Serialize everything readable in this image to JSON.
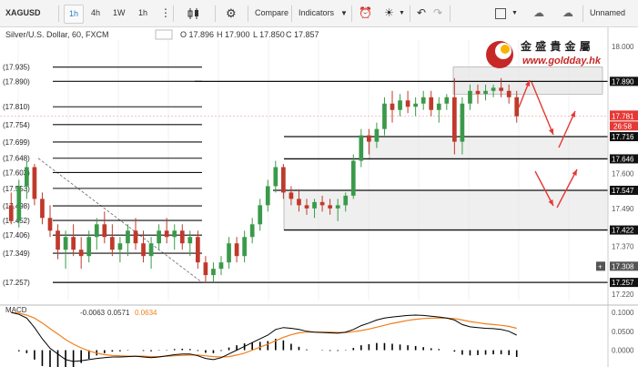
{
  "toolbar": {
    "symbol": "XAGUSD",
    "intervals": [
      "1h",
      "4h",
      "1W",
      "1h"
    ],
    "active_interval": "1h",
    "compare_label": "Compare",
    "indicators_label": "Indicators",
    "layout_name": "Unnamed",
    "icons": [
      "more-icon",
      "candles-icon",
      "gear-icon",
      "alert-icon",
      "bulb-icon",
      "undo-icon",
      "redo-icon",
      "square-icon",
      "cloud-down-icon",
      "cloud-up-icon"
    ]
  },
  "header": {
    "title": "Silver/U.S. Dollar, 60, FXCM",
    "open": "O 17.896",
    "high": "H 17.900",
    "low": "L 17.850",
    "close": "C 17.857"
  },
  "watermark": {
    "chinese": "金 盛 貴 金 屬",
    "url": "www.goldday.hk"
  },
  "colors": {
    "up": "#3a9a4a",
    "down": "#c0392b",
    "level_line": "#111111",
    "zone_fill": "#e4e4e4",
    "arrow": "#e53935",
    "macd_line": "#000000",
    "signal_line": "#ef7f1a",
    "current_price_bg": "#e53935"
  },
  "price_scale": {
    "ticks": [
      "18.000",
      "17.890",
      "17.781",
      "17.716",
      "17.646",
      "17.600",
      "17.547",
      "17.490",
      "17.422",
      "17.370",
      "17.308",
      "17.257",
      "17.220"
    ],
    "current_price": "17.781",
    "countdown": "26:58"
  },
  "fib_levels": [
    {
      "price": 17.935,
      "label": "(17.935)"
    },
    {
      "price": 17.89,
      "label": "(17.890)"
    },
    {
      "price": 17.81,
      "label": "(17.810)"
    },
    {
      "price": 17.754,
      "label": "(17.754)"
    },
    {
      "price": 17.699,
      "label": "(17.699)"
    },
    {
      "price": 17.648,
      "label": "(17.648)"
    },
    {
      "price": 17.603,
      "label": "(17.603)"
    },
    {
      "price": 17.553,
      "label": "(17.553)"
    },
    {
      "price": 17.498,
      "label": "(17.498)"
    },
    {
      "price": 17.452,
      "label": "(17.452)"
    },
    {
      "price": 17.406,
      "label": "(17.406)"
    },
    {
      "price": 17.349,
      "label": "(17.349)"
    },
    {
      "price": 17.257,
      "label": "(17.257)"
    }
  ],
  "right_levels": [
    17.89,
    17.716,
    17.646,
    17.547,
    17.422,
    17.257
  ],
  "macd": {
    "label": "MACD",
    "values": [
      "-0.0063",
      "0.0571",
      "0.0634"
    ],
    "ticks": [
      "0.1000",
      "0.0500",
      "0.0000"
    ]
  },
  "chart_data": {
    "type": "candlestick",
    "ylim": [
      17.2,
      18.02
    ],
    "candles": [
      [
        17.5,
        17.54,
        17.44,
        17.45
      ],
      [
        17.45,
        17.58,
        17.43,
        17.56
      ],
      [
        17.56,
        17.64,
        17.52,
        17.62
      ],
      [
        17.62,
        17.63,
        17.5,
        17.52
      ],
      [
        17.52,
        17.54,
        17.44,
        17.46
      ],
      [
        17.46,
        17.5,
        17.4,
        17.42
      ],
      [
        17.42,
        17.44,
        17.33,
        17.36
      ],
      [
        17.36,
        17.42,
        17.3,
        17.4
      ],
      [
        17.4,
        17.44,
        17.34,
        17.36
      ],
      [
        17.36,
        17.4,
        17.3,
        17.34
      ],
      [
        17.34,
        17.42,
        17.32,
        17.4
      ],
      [
        17.4,
        17.46,
        17.36,
        17.44
      ],
      [
        17.44,
        17.48,
        17.38,
        17.4
      ],
      [
        17.4,
        17.44,
        17.34,
        17.36
      ],
      [
        17.36,
        17.4,
        17.32,
        17.38
      ],
      [
        17.38,
        17.44,
        17.34,
        17.42
      ],
      [
        17.42,
        17.46,
        17.36,
        17.38
      ],
      [
        17.38,
        17.42,
        17.32,
        17.34
      ],
      [
        17.34,
        17.4,
        17.3,
        17.38
      ],
      [
        17.38,
        17.44,
        17.36,
        17.42
      ],
      [
        17.42,
        17.46,
        17.38,
        17.4
      ],
      [
        17.4,
        17.44,
        17.36,
        17.42
      ],
      [
        17.42,
        17.44,
        17.36,
        17.38
      ],
      [
        17.38,
        17.42,
        17.34,
        17.4
      ],
      [
        17.4,
        17.42,
        17.3,
        17.32
      ],
      [
        17.32,
        17.34,
        17.26,
        17.28
      ],
      [
        17.28,
        17.32,
        17.26,
        17.3
      ],
      [
        17.3,
        17.34,
        17.28,
        17.32
      ],
      [
        17.32,
        17.4,
        17.3,
        17.38
      ],
      [
        17.38,
        17.4,
        17.32,
        17.34
      ],
      [
        17.34,
        17.42,
        17.32,
        17.4
      ],
      [
        17.4,
        17.46,
        17.38,
        17.44
      ],
      [
        17.44,
        17.52,
        17.42,
        17.5
      ],
      [
        17.5,
        17.58,
        17.48,
        17.56
      ],
      [
        17.56,
        17.64,
        17.54,
        17.62
      ],
      [
        17.62,
        17.63,
        17.52,
        17.54
      ],
      [
        17.54,
        17.56,
        17.5,
        17.52
      ],
      [
        17.52,
        17.55,
        17.48,
        17.5
      ],
      [
        17.5,
        17.52,
        17.47,
        17.49
      ],
      [
        17.49,
        17.52,
        17.46,
        17.51
      ],
      [
        17.51,
        17.53,
        17.48,
        17.5
      ],
      [
        17.5,
        17.52,
        17.47,
        17.49
      ],
      [
        17.49,
        17.52,
        17.45,
        17.5
      ],
      [
        17.5,
        17.54,
        17.48,
        17.53
      ],
      [
        17.53,
        17.66,
        17.52,
        17.64
      ],
      [
        17.64,
        17.74,
        17.62,
        17.72
      ],
      [
        17.72,
        17.74,
        17.66,
        17.7
      ],
      [
        17.7,
        17.76,
        17.68,
        17.74
      ],
      [
        17.74,
        17.84,
        17.72,
        17.82
      ],
      [
        17.82,
        17.86,
        17.76,
        17.8
      ],
      [
        17.8,
        17.85,
        17.78,
        17.83
      ],
      [
        17.83,
        17.86,
        17.79,
        17.81
      ],
      [
        17.81,
        17.84,
        17.78,
        17.82
      ],
      [
        17.82,
        17.86,
        17.8,
        17.84
      ],
      [
        17.84,
        17.86,
        17.78,
        17.8
      ],
      [
        17.8,
        17.84,
        17.76,
        17.82
      ],
      [
        17.82,
        17.85,
        17.8,
        17.84
      ],
      [
        17.84,
        17.9,
        17.66,
        17.7
      ],
      [
        17.7,
        17.84,
        17.66,
        17.82
      ],
      [
        17.82,
        17.88,
        17.8,
        17.86
      ],
      [
        17.86,
        17.88,
        17.82,
        17.85
      ],
      [
        17.85,
        17.88,
        17.83,
        17.86
      ],
      [
        17.86,
        17.88,
        17.84,
        17.87
      ],
      [
        17.87,
        17.9,
        17.84,
        17.86
      ],
      [
        17.86,
        17.88,
        17.82,
        17.84
      ],
      [
        17.84,
        17.86,
        17.76,
        17.78
      ]
    ],
    "macd_line": [
      0.1,
      0.095,
      0.085,
      0.06,
      0.03,
      0.005,
      -0.01,
      -0.025,
      -0.03,
      -0.028,
      -0.025,
      -0.022,
      -0.02,
      -0.018,
      -0.018,
      -0.017,
      -0.016,
      -0.018,
      -0.02,
      -0.018,
      -0.015,
      -0.012,
      -0.01,
      -0.01,
      -0.015,
      -0.022,
      -0.025,
      -0.02,
      -0.01,
      0.0,
      0.01,
      0.02,
      0.03,
      0.04,
      0.055,
      0.06,
      0.058,
      0.055,
      0.05,
      0.048,
      0.047,
      0.046,
      0.045,
      0.048,
      0.055,
      0.065,
      0.072,
      0.08,
      0.085,
      0.088,
      0.09,
      0.092,
      0.093,
      0.092,
      0.09,
      0.088,
      0.085,
      0.08,
      0.068,
      0.062,
      0.06,
      0.058,
      0.057,
      0.055,
      0.05,
      0.04
    ],
    "signal_line": [
      0.1,
      0.098,
      0.093,
      0.085,
      0.072,
      0.057,
      0.043,
      0.028,
      0.016,
      0.006,
      -0.002,
      -0.008,
      -0.012,
      -0.014,
      -0.015,
      -0.016,
      -0.016,
      -0.016,
      -0.017,
      -0.017,
      -0.016,
      -0.015,
      -0.014,
      -0.013,
      -0.013,
      -0.015,
      -0.017,
      -0.018,
      -0.017,
      -0.013,
      -0.008,
      0.0,
      0.008,
      0.016,
      0.025,
      0.034,
      0.041,
      0.046,
      0.048,
      0.048,
      0.048,
      0.048,
      0.047,
      0.047,
      0.049,
      0.052,
      0.056,
      0.061,
      0.066,
      0.071,
      0.075,
      0.079,
      0.082,
      0.084,
      0.085,
      0.085,
      0.085,
      0.084,
      0.08,
      0.076,
      0.073,
      0.07,
      0.068,
      0.066,
      0.063,
      0.058
    ]
  }
}
